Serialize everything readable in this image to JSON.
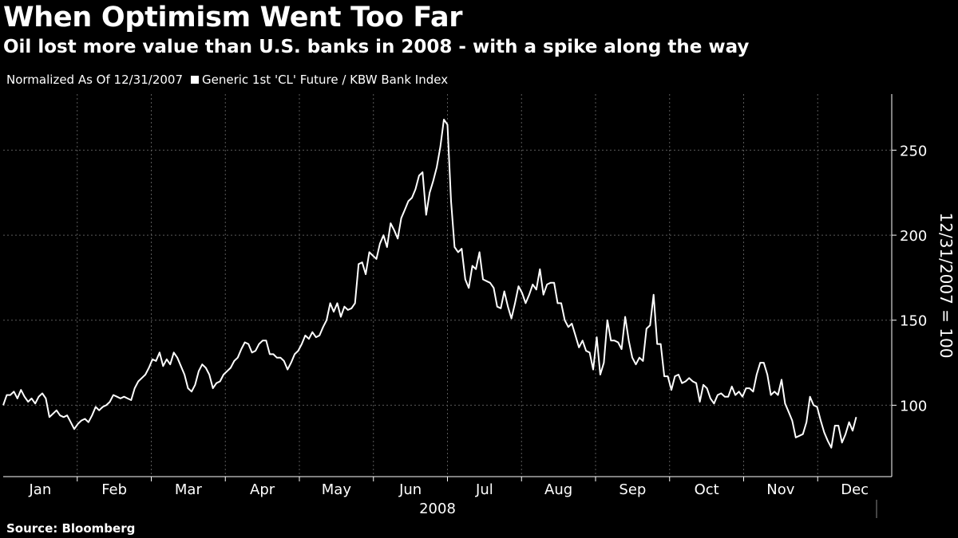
{
  "header": {
    "title": "When Optimism Went Too Far",
    "subtitle": "Oil lost more value than U.S. banks in 2008 - with a spike along the way",
    "normalized_note": "Normalized As Of 12/31/2007",
    "legend_label": "Generic 1st 'CL' Future / KBW Bank Index"
  },
  "source": "Source: Bloomberg",
  "colors": {
    "background": "#000000",
    "line": "#ffffff",
    "grid": "#5a5a5a"
  },
  "chart_data": {
    "type": "line",
    "title": "When Optimism Went Too Far",
    "ylabel": "12/31/2007 = 100",
    "xlabel": "2008",
    "ylim": [
      58,
      283
    ],
    "yticks": [
      100,
      150,
      200,
      250
    ],
    "grid": true,
    "legend": "top-left",
    "months": [
      "Jan",
      "Feb",
      "Mar",
      "Apr",
      "May",
      "Jun",
      "Jul",
      "Aug",
      "Sep",
      "Oct",
      "Nov",
      "Dec"
    ],
    "x_range_days": [
      0,
      366
    ],
    "series": [
      {
        "name": "Generic 1st 'CL' Future / KBW Bank Index",
        "points": [
          [
            0,
            100
          ],
          [
            2,
            106
          ],
          [
            4,
            106
          ],
          [
            6,
            108
          ],
          [
            8,
            104
          ],
          [
            10,
            109
          ],
          [
            12,
            105
          ],
          [
            14,
            102
          ],
          [
            16,
            104
          ],
          [
            18,
            101
          ],
          [
            20,
            105
          ],
          [
            22,
            107
          ],
          [
            24,
            104
          ],
          [
            26,
            93
          ],
          [
            28,
            95
          ],
          [
            30,
            97
          ],
          [
            32,
            94
          ],
          [
            34,
            93
          ],
          [
            36,
            94
          ],
          [
            38,
            90
          ],
          [
            40,
            86
          ],
          [
            42,
            89
          ],
          [
            44,
            91
          ],
          [
            46,
            92
          ],
          [
            48,
            90
          ],
          [
            50,
            94
          ],
          [
            52,
            99
          ],
          [
            54,
            97
          ],
          [
            56,
            99
          ],
          [
            58,
            100
          ],
          [
            60,
            102
          ],
          [
            62,
            106
          ],
          [
            64,
            105
          ],
          [
            66,
            104
          ],
          [
            68,
            105
          ],
          [
            70,
            104
          ],
          [
            72,
            103
          ],
          [
            74,
            110
          ],
          [
            76,
            114
          ],
          [
            78,
            116
          ],
          [
            80,
            118
          ],
          [
            82,
            122
          ],
          [
            84,
            127
          ],
          [
            86,
            126
          ],
          [
            88,
            131
          ],
          [
            90,
            123
          ],
          [
            92,
            127
          ],
          [
            94,
            124
          ],
          [
            96,
            131
          ],
          [
            98,
            128
          ],
          [
            100,
            123
          ],
          [
            102,
            118
          ],
          [
            104,
            110
          ],
          [
            106,
            108
          ],
          [
            108,
            112
          ],
          [
            110,
            120
          ],
          [
            112,
            124
          ],
          [
            114,
            122
          ],
          [
            116,
            118
          ],
          [
            118,
            110
          ],
          [
            120,
            113
          ],
          [
            122,
            114
          ],
          [
            124,
            118
          ],
          [
            126,
            120
          ],
          [
            128,
            122
          ],
          [
            130,
            126
          ],
          [
            132,
            128
          ],
          [
            134,
            133
          ],
          [
            136,
            137
          ],
          [
            138,
            136
          ],
          [
            140,
            131
          ],
          [
            142,
            132
          ],
          [
            144,
            136
          ],
          [
            146,
            138
          ],
          [
            148,
            138
          ],
          [
            150,
            130
          ],
          [
            152,
            130
          ],
          [
            154,
            128
          ],
          [
            156,
            128
          ],
          [
            158,
            126
          ],
          [
            160,
            121
          ],
          [
            162,
            125
          ],
          [
            164,
            130
          ],
          [
            166,
            132
          ],
          [
            168,
            136
          ],
          [
            170,
            141
          ],
          [
            172,
            139
          ],
          [
            174,
            143
          ],
          [
            176,
            140
          ],
          [
            178,
            141
          ],
          [
            180,
            146
          ],
          [
            182,
            150
          ],
          [
            184,
            160
          ],
          [
            186,
            155
          ],
          [
            188,
            160
          ],
          [
            190,
            152
          ],
          [
            192,
            158
          ],
          [
            194,
            156
          ],
          [
            196,
            157
          ],
          [
            198,
            160
          ],
          [
            200,
            183
          ],
          [
            202,
            184
          ],
          [
            204,
            177
          ],
          [
            206,
            190
          ],
          [
            208,
            188
          ],
          [
            210,
            186
          ],
          [
            212,
            195
          ],
          [
            214,
            200
          ],
          [
            216,
            193
          ],
          [
            218,
            207
          ],
          [
            220,
            203
          ],
          [
            222,
            198
          ],
          [
            224,
            210
          ],
          [
            226,
            215
          ],
          [
            228,
            220
          ],
          [
            230,
            222
          ],
          [
            232,
            227
          ],
          [
            234,
            235
          ],
          [
            236,
            237
          ],
          [
            238,
            212
          ],
          [
            240,
            225
          ],
          [
            242,
            232
          ],
          [
            244,
            240
          ],
          [
            246,
            252
          ],
          [
            248,
            268
          ],
          [
            250,
            265
          ],
          [
            252,
            220
          ],
          [
            254,
            193
          ],
          [
            256,
            190
          ],
          [
            258,
            192
          ],
          [
            260,
            174
          ],
          [
            262,
            169
          ],
          [
            264,
            182
          ],
          [
            266,
            180
          ],
          [
            268,
            190
          ],
          [
            270,
            174
          ],
          [
            272,
            173
          ],
          [
            274,
            172
          ],
          [
            276,
            169
          ],
          [
            278,
            158
          ],
          [
            280,
            157
          ],
          [
            282,
            167
          ],
          [
            284,
            158
          ],
          [
            286,
            151
          ],
          [
            288,
            160
          ],
          [
            290,
            170
          ],
          [
            292,
            166
          ],
          [
            294,
            160
          ],
          [
            296,
            165
          ],
          [
            298,
            171
          ],
          [
            300,
            168
          ],
          [
            302,
            180
          ],
          [
            304,
            165
          ],
          [
            306,
            171
          ],
          [
            308,
            172
          ],
          [
            310,
            172
          ],
          [
            312,
            160
          ],
          [
            314,
            160
          ],
          [
            316,
            150
          ],
          [
            318,
            146
          ],
          [
            320,
            148
          ],
          [
            322,
            141
          ],
          [
            324,
            134
          ],
          [
            326,
            138
          ],
          [
            328,
            132
          ],
          [
            330,
            131
          ],
          [
            332,
            121
          ],
          [
            334,
            140
          ],
          [
            336,
            118
          ],
          [
            338,
            125
          ],
          [
            340,
            150
          ],
          [
            342,
            138
          ],
          [
            344,
            138
          ],
          [
            346,
            137
          ],
          [
            348,
            133
          ],
          [
            350,
            152
          ],
          [
            352,
            138
          ],
          [
            354,
            128
          ],
          [
            356,
            124
          ],
          [
            358,
            128
          ],
          [
            360,
            126
          ],
          [
            362,
            145
          ],
          [
            364,
            147
          ],
          [
            366,
            165
          ],
          [
            368,
            136
          ],
          [
            370,
            136
          ],
          [
            372,
            117
          ],
          [
            374,
            117
          ],
          [
            376,
            109
          ],
          [
            378,
            117
          ],
          [
            380,
            118
          ],
          [
            382,
            113
          ],
          [
            384,
            114
          ],
          [
            386,
            116
          ],
          [
            388,
            114
          ],
          [
            390,
            113
          ],
          [
            392,
            102
          ],
          [
            394,
            112
          ],
          [
            396,
            110
          ],
          [
            398,
            104
          ],
          [
            400,
            101
          ],
          [
            402,
            106
          ],
          [
            404,
            107
          ],
          [
            406,
            105
          ],
          [
            408,
            105
          ],
          [
            410,
            111
          ],
          [
            412,
            106
          ],
          [
            414,
            108
          ],
          [
            416,
            105
          ],
          [
            418,
            110
          ],
          [
            420,
            110
          ],
          [
            422,
            108
          ],
          [
            424,
            118
          ],
          [
            426,
            125
          ],
          [
            428,
            125
          ],
          [
            430,
            118
          ],
          [
            432,
            106
          ],
          [
            434,
            108
          ],
          [
            436,
            106
          ],
          [
            438,
            115
          ],
          [
            440,
            101
          ],
          [
            442,
            96
          ],
          [
            444,
            91
          ],
          [
            446,
            81
          ],
          [
            448,
            82
          ],
          [
            450,
            83
          ],
          [
            452,
            90
          ],
          [
            454,
            105
          ],
          [
            456,
            100
          ],
          [
            458,
            99
          ],
          [
            460,
            91
          ],
          [
            462,
            84
          ],
          [
            464,
            79
          ],
          [
            466,
            75
          ],
          [
            468,
            88
          ],
          [
            470,
            88
          ],
          [
            472,
            78
          ],
          [
            474,
            83
          ],
          [
            476,
            90
          ],
          [
            478,
            85
          ],
          [
            480,
            93
          ]
        ]
      }
    ]
  }
}
